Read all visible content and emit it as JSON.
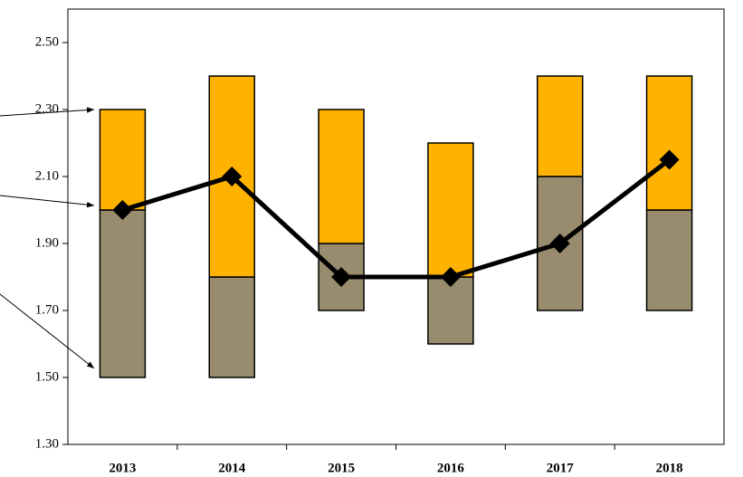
{
  "chart_data": {
    "type": "floating_bar",
    "categories": [
      "2013",
      "2014",
      "2015",
      "2016",
      "2017",
      "2018"
    ],
    "low": [
      1.5,
      1.5,
      1.7,
      1.6,
      1.7,
      1.7
    ],
    "mid": [
      2.0,
      1.8,
      1.9,
      1.8,
      2.1,
      2.0
    ],
    "high": [
      2.3,
      2.4,
      2.3,
      2.2,
      2.4,
      2.4
    ],
    "lower_color": "#988b6e",
    "upper_color": "#ffb300",
    "line": {
      "values": [
        2.0,
        2.1,
        1.8,
        1.8,
        1.9,
        2.15
      ],
      "color": "#000000"
    },
    "ylim": [
      1.3,
      2.6
    ],
    "yticks": [
      {
        "value": 1.3,
        "label": "1.30"
      },
      {
        "value": 1.5,
        "label": "1.50"
      },
      {
        "value": 1.7,
        "label": "1.70"
      },
      {
        "value": 1.9,
        "label": "1.90"
      },
      {
        "value": 2.1,
        "label": "2.10"
      },
      {
        "value": 2.3,
        "label": "2.30"
      },
      {
        "value": 2.5,
        "label": "2.50"
      }
    ]
  }
}
